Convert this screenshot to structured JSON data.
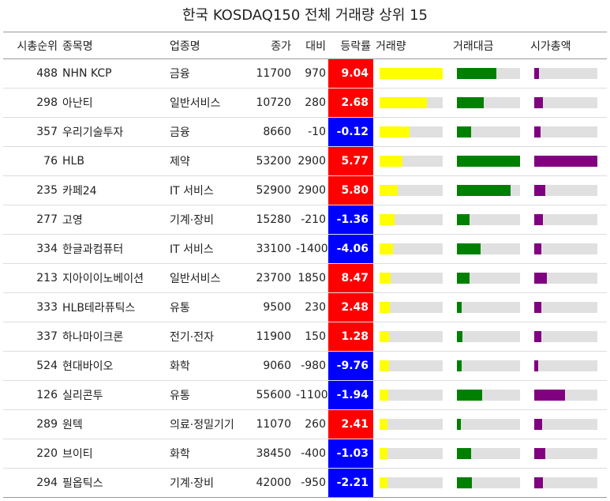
{
  "title": "한국 KOSDAQ150 전체 거래량 상위 15",
  "columns": [
    "시총순위",
    "종목명",
    "업종명",
    "종가",
    "대비",
    "등락률",
    "거래량",
    "거래대금",
    "시가총액"
  ],
  "colors": {
    "up": "#ff0000",
    "down": "#0000ff",
    "volume": "#ffff00",
    "value": "#008000",
    "mcap": "#800080",
    "track": "#e0e0e0"
  },
  "rows": [
    {
      "rank": "488",
      "name": "NHN KCP",
      "sector": "금융",
      "close": "11700",
      "diff": "970",
      "pct": "9.04",
      "vol": 1.0,
      "val": 0.63,
      "mcap": 0.07
    },
    {
      "rank": "298",
      "name": "아난티",
      "sector": "일반서비스",
      "close": "10720",
      "diff": "280",
      "pct": "2.68",
      "vol": 0.75,
      "val": 0.43,
      "mcap": 0.14
    },
    {
      "rank": "357",
      "name": "우리기술투자",
      "sector": "금융",
      "close": "8660",
      "diff": "-10",
      "pct": "-0.12",
      "vol": 0.48,
      "val": 0.23,
      "mcap": 0.1
    },
    {
      "rank": "76",
      "name": "HLB",
      "sector": "제약",
      "close": "53200",
      "diff": "2900",
      "pct": "5.77",
      "vol": 0.36,
      "val": 1.0,
      "mcap": 1.0
    },
    {
      "rank": "235",
      "name": "카페24",
      "sector": "IT 서비스",
      "close": "52900",
      "diff": "2900",
      "pct": "5.80",
      "vol": 0.29,
      "val": 0.85,
      "mcap": 0.18
    },
    {
      "rank": "277",
      "name": "고영",
      "sector": "기계·장비",
      "close": "15280",
      "diff": "-210",
      "pct": "-1.36",
      "vol": 0.24,
      "val": 0.2,
      "mcap": 0.14
    },
    {
      "rank": "334",
      "name": "한글과컴퓨터",
      "sector": "IT 서비스",
      "close": "33100",
      "diff": "-1400",
      "pct": "-4.06",
      "vol": 0.21,
      "val": 0.37,
      "mcap": 0.11
    },
    {
      "rank": "213",
      "name": "지아이이노베이션",
      "sector": "일반서비스",
      "close": "23700",
      "diff": "1850",
      "pct": "8.47",
      "vol": 0.18,
      "val": 0.2,
      "mcap": 0.2
    },
    {
      "rank": "333",
      "name": "HLB테라퓨틱스",
      "sector": "유통",
      "close": "9500",
      "diff": "230",
      "pct": "2.48",
      "vol": 0.16,
      "val": 0.07,
      "mcap": 0.11
    },
    {
      "rank": "337",
      "name": "하나마이크론",
      "sector": "전기·전자",
      "close": "11900",
      "diff": "150",
      "pct": "1.28",
      "vol": 0.15,
      "val": 0.09,
      "mcap": 0.11
    },
    {
      "rank": "524",
      "name": "현대바이오",
      "sector": "화학",
      "close": "9060",
      "diff": "-980",
      "pct": "-9.76",
      "vol": 0.15,
      "val": 0.07,
      "mcap": 0.06
    },
    {
      "rank": "126",
      "name": "실리콘투",
      "sector": "유통",
      "close": "55600",
      "diff": "-1100",
      "pct": "-1.94",
      "vol": 0.14,
      "val": 0.4,
      "mcap": 0.49
    },
    {
      "rank": "289",
      "name": "원텍",
      "sector": "의료·정밀기기",
      "close": "11070",
      "diff": "260",
      "pct": "2.41",
      "vol": 0.13,
      "val": 0.06,
      "mcap": 0.13
    },
    {
      "rank": "220",
      "name": "브이티",
      "sector": "화학",
      "close": "38450",
      "diff": "-400",
      "pct": "-1.03",
      "vol": 0.12,
      "val": 0.22,
      "mcap": 0.18
    },
    {
      "rank": "294",
      "name": "필옵틱스",
      "sector": "기계·장비",
      "close": "42000",
      "diff": "-950",
      "pct": "-2.21",
      "vol": 0.12,
      "val": 0.24,
      "mcap": 0.14
    }
  ]
}
